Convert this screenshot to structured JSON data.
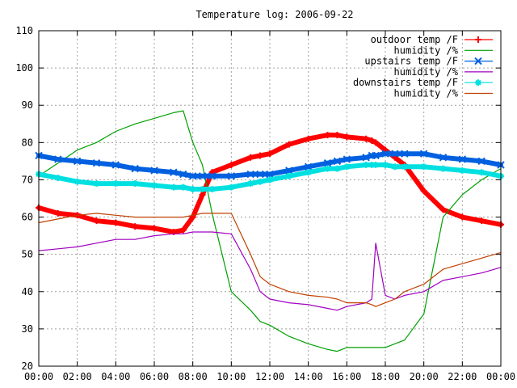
{
  "chart_data": {
    "type": "line",
    "title": "Temperature log: 2006-09-22",
    "xlabel": "",
    "ylabel": "",
    "xlim": [
      0,
      24
    ],
    "ylim": [
      20,
      110
    ],
    "grid": true,
    "legend_position": "top-right",
    "x_ticks": [
      "00:00",
      "02:00",
      "04:00",
      "06:00",
      "08:00",
      "10:00",
      "12:00",
      "14:00",
      "16:00",
      "18:00",
      "20:00",
      "22:00",
      "00:00"
    ],
    "y_ticks": [
      20,
      30,
      40,
      50,
      60,
      70,
      80,
      90,
      100,
      110
    ],
    "x": [
      0,
      1,
      2,
      3,
      4,
      5,
      6,
      7,
      7.5,
      8,
      8.5,
      9,
      10,
      11,
      11.5,
      12,
      13,
      14,
      15,
      15.5,
      16,
      17,
      17.3,
      17.5,
      18,
      18.5,
      19,
      20,
      21,
      22,
      23,
      24
    ],
    "series": [
      {
        "name": "outdoor temp /F",
        "color": "#ff0000",
        "marker": "plus",
        "values": [
          62.5,
          61,
          60.5,
          59,
          58.5,
          57.5,
          57,
          56,
          56.5,
          60,
          66,
          72,
          74,
          76,
          76.5,
          77,
          79.5,
          81,
          82,
          82,
          81.5,
          81,
          80.5,
          80,
          78,
          76,
          74,
          67,
          62,
          60,
          59,
          58
        ]
      },
      {
        "name": "humidity /%",
        "color": "#00a000",
        "marker": "none",
        "values": [
          71,
          74.5,
          78,
          80,
          83,
          85,
          86.5,
          88,
          88.5,
          80,
          74,
          61,
          40,
          35,
          32,
          31,
          28,
          26,
          24.5,
          24,
          25,
          25,
          25,
          25,
          25,
          26,
          27,
          34,
          60,
          66,
          70,
          73
        ]
      },
      {
        "name": "upstairs temp /F",
        "color": "#0060e0",
        "marker": "cross",
        "values": [
          76.5,
          75.5,
          75,
          74.5,
          74,
          73,
          72.5,
          72,
          71.5,
          71,
          71,
          71,
          71,
          71.5,
          71.5,
          71.5,
          72.5,
          73.5,
          74.5,
          75,
          75.5,
          76,
          76.5,
          76.5,
          77,
          77,
          77,
          77,
          76,
          75.5,
          75,
          74
        ]
      },
      {
        "name": "humidity /%",
        "color": "#a000c0",
        "marker": "none",
        "values": [
          51,
          51.5,
          52,
          53,
          54,
          54,
          55,
          55.5,
          55.5,
          56,
          56,
          56,
          55.5,
          46,
          40,
          38,
          37,
          36.5,
          35.5,
          35,
          36,
          37,
          38,
          53,
          39,
          38,
          39,
          40,
          43,
          44,
          45,
          46.5
        ]
      },
      {
        "name": "downstairs temp /F",
        "color": "#00e0e0",
        "marker": "star",
        "values": [
          71.5,
          70.5,
          69.5,
          69,
          69,
          69,
          68.5,
          68,
          68,
          67.5,
          67.5,
          67.5,
          68,
          69,
          69.5,
          70,
          71,
          72,
          73,
          73,
          73.5,
          74,
          74,
          74,
          74,
          73.5,
          73.5,
          73.5,
          73,
          72.5,
          72,
          71
        ]
      },
      {
        "name": "humidity /%",
        "color": "#c04000",
        "marker": "none",
        "values": [
          58.5,
          59.5,
          60.5,
          61,
          60.5,
          60,
          60,
          60,
          60,
          60.5,
          61,
          61,
          61,
          50,
          44,
          42,
          40,
          39,
          38.5,
          38,
          37,
          37,
          36.5,
          36,
          37,
          38,
          40,
          42,
          46,
          47.5,
          49,
          50.5
        ]
      }
    ]
  }
}
